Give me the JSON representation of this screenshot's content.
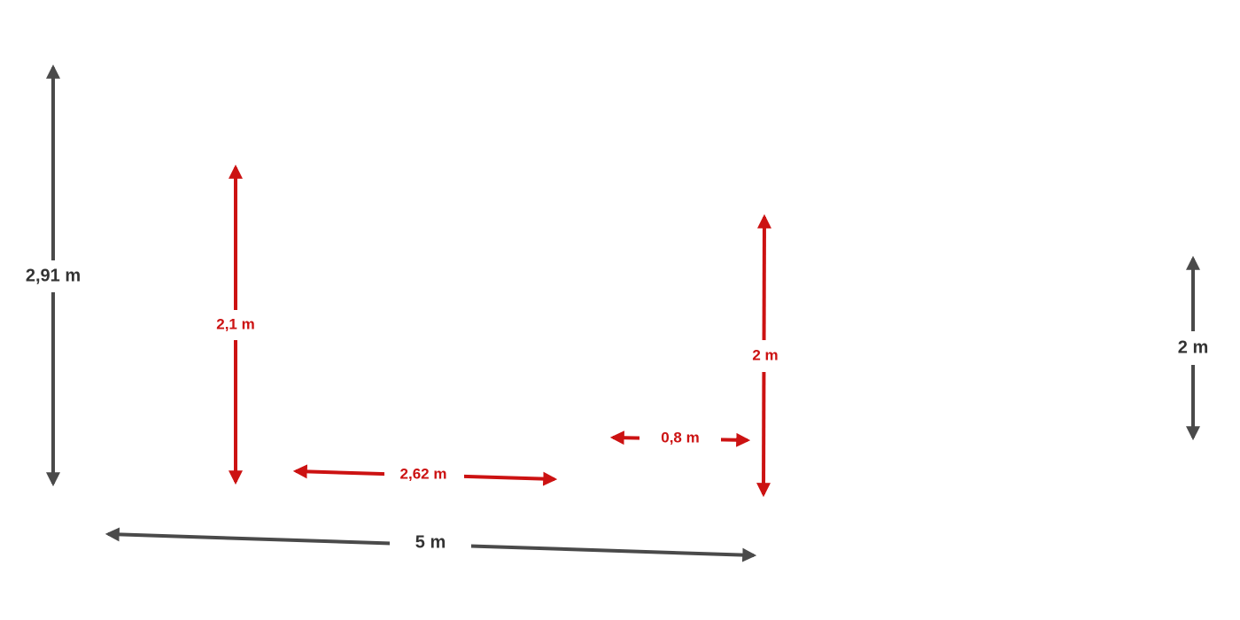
{
  "dimensions": [
    {
      "label": "2,91 m"
    },
    {
      "label": "2,1 m"
    },
    {
      "label": "2,62 m"
    },
    {
      "label": "0,8 m"
    },
    {
      "label": "2 m"
    },
    {
      "label": "5 m"
    },
    {
      "label": "2 m"
    }
  ]
}
